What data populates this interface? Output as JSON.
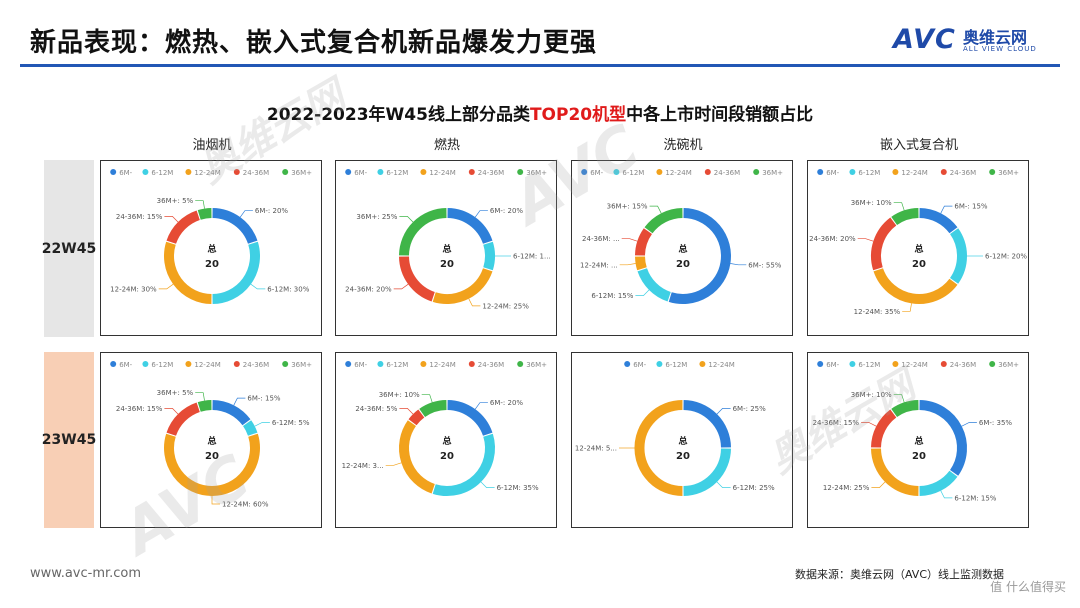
{
  "page": {
    "title": "新品表现：燃热、嵌入式复合机新品爆发力更强",
    "subtitle_pre": "2022-2023年W45线上部分品类",
    "subtitle_hl": "TOP20机型",
    "subtitle_post": "中各上市时间段销额占比",
    "footer_url": "www.avc-mr.com",
    "footer_source": "数据来源：奥维云网（AVC）线上监测数据",
    "credit": "值 什么值得买"
  },
  "logo": {
    "mark": "AVC",
    "cn": "奥维云网",
    "en": "ALL VIEW CLOUD"
  },
  "watermark": {
    "cn": "奥维云网",
    "en": "ALL VIEW CLOUD",
    "mark": "AVC"
  },
  "columns": [
    "油烟机",
    "燃热",
    "洗碗机",
    "嵌入式复合机"
  ],
  "rows": [
    "22W45",
    "23W45"
  ],
  "colors": {
    "6M-": "#2e7fd9",
    "6-12M": "#3fd0e4",
    "12-24M": "#f2a21c",
    "24-36M": "#e64b35",
    "36M+": "#3fb548"
  },
  "chart_data": [
    {
      "type": "pie",
      "row": "22W45",
      "column": "油烟机",
      "center": [
        "总",
        "20"
      ],
      "legend": [
        "6M-",
        "6-12M",
        "12-24M",
        "24-36M",
        "36M+"
      ],
      "series": [
        {
          "name": "6M-",
          "value": 20,
          "label": "6M-: 20%"
        },
        {
          "name": "6-12M",
          "value": 30,
          "label": "6-12M: 30%"
        },
        {
          "name": "12-24M",
          "value": 30,
          "label": "12-24M: 30%"
        },
        {
          "name": "24-36M",
          "value": 15,
          "label": "24-36M: 15%"
        },
        {
          "name": "36M+",
          "value": 5,
          "label": "36M+: 5%"
        }
      ]
    },
    {
      "type": "pie",
      "row": "22W45",
      "column": "燃热",
      "center": [
        "总",
        "20"
      ],
      "legend": [
        "6M-",
        "6-12M",
        "12-24M",
        "24-36M",
        "36M+"
      ],
      "series": [
        {
          "name": "6M-",
          "value": 20,
          "label": "6M-: 20%"
        },
        {
          "name": "6-12M",
          "value": 10,
          "label": "6-12M: 1..."
        },
        {
          "name": "12-24M",
          "value": 25,
          "label": "12-24M: 25%"
        },
        {
          "name": "24-36M",
          "value": 20,
          "label": "24-36M: 20%"
        },
        {
          "name": "36M+",
          "value": 25,
          "label": "36M+: 25%"
        }
      ]
    },
    {
      "type": "pie",
      "row": "22W45",
      "column": "洗碗机",
      "center": [
        "总",
        "20"
      ],
      "legend": [
        "6M-",
        "6-12M",
        "12-24M",
        "24-36M",
        "36M+"
      ],
      "series": [
        {
          "name": "6M-",
          "value": 55,
          "label": "6M-: 55%"
        },
        {
          "name": "6-12M",
          "value": 15,
          "label": "6-12M: 15%"
        },
        {
          "name": "12-24M",
          "value": 5,
          "label": "12-24M: ..."
        },
        {
          "name": "24-36M",
          "value": 10,
          "label": "24-36M: ..."
        },
        {
          "name": "36M+",
          "value": 15,
          "label": "36M+: 15%"
        }
      ]
    },
    {
      "type": "pie",
      "row": "22W45",
      "column": "嵌入式复合机",
      "center": [
        "总",
        "20"
      ],
      "legend": [
        "6M-",
        "6-12M",
        "12-24M",
        "24-36M",
        "36M+"
      ],
      "series": [
        {
          "name": "6M-",
          "value": 15,
          "label": "6M-: 15%"
        },
        {
          "name": "6-12M",
          "value": 20,
          "label": "6-12M: 20%"
        },
        {
          "name": "12-24M",
          "value": 35,
          "label": "12-24M: 35%"
        },
        {
          "name": "24-36M",
          "value": 20,
          "label": "24-36M: 20%"
        },
        {
          "name": "36M+",
          "value": 10,
          "label": "36M+: 10%"
        }
      ]
    },
    {
      "type": "pie",
      "row": "23W45",
      "column": "油烟机",
      "center": [
        "总",
        "20"
      ],
      "legend": [
        "6M-",
        "6-12M",
        "12-24M",
        "24-36M",
        "36M+"
      ],
      "series": [
        {
          "name": "6M-",
          "value": 15,
          "label": "6M-: 15%"
        },
        {
          "name": "6-12M",
          "value": 5,
          "label": "6-12M: 5%"
        },
        {
          "name": "12-24M",
          "value": 60,
          "label": "12-24M: 60%"
        },
        {
          "name": "24-36M",
          "value": 15,
          "label": "24-36M: 15%"
        },
        {
          "name": "36M+",
          "value": 5,
          "label": "36M+: 5%"
        }
      ]
    },
    {
      "type": "pie",
      "row": "23W45",
      "column": "燃热",
      "center": [
        "总",
        "20"
      ],
      "legend": [
        "6M-",
        "6-12M",
        "12-24M",
        "24-36M",
        "36M+"
      ],
      "series": [
        {
          "name": "6M-",
          "value": 20,
          "label": "6M-: 20%"
        },
        {
          "name": "6-12M",
          "value": 35,
          "label": "6-12M: 35%"
        },
        {
          "name": "12-24M",
          "value": 30,
          "label": "12-24M: 3..."
        },
        {
          "name": "24-36M",
          "value": 5,
          "label": "24-36M: 5%"
        },
        {
          "name": "36M+",
          "value": 10,
          "label": "36M+: 10%"
        }
      ]
    },
    {
      "type": "pie",
      "row": "23W45",
      "column": "洗碗机",
      "center": [
        "总",
        "20"
      ],
      "legend": [
        "6M-",
        "6-12M",
        "12-24M"
      ],
      "series": [
        {
          "name": "6M-",
          "value": 25,
          "label": "6M-: 25%"
        },
        {
          "name": "6-12M",
          "value": 25,
          "label": "6-12M: 25%"
        },
        {
          "name": "12-24M",
          "value": 50,
          "label": "12-24M: 5..."
        }
      ]
    },
    {
      "type": "pie",
      "row": "23W45",
      "column": "嵌入式复合机",
      "center": [
        "总",
        "20"
      ],
      "legend": [
        "6M-",
        "6-12M",
        "12-24M",
        "24-36M",
        "36M+"
      ],
      "series": [
        {
          "name": "6M-",
          "value": 35,
          "label": "6M-: 35%"
        },
        {
          "name": "6-12M",
          "value": 15,
          "label": "6-12M: 15%"
        },
        {
          "name": "12-24M",
          "value": 25,
          "label": "12-24M: 25%"
        },
        {
          "name": "24-36M",
          "value": 15,
          "label": "24-36M: 15%"
        },
        {
          "name": "36M+",
          "value": 10,
          "label": "36M+: 10%"
        }
      ]
    }
  ]
}
